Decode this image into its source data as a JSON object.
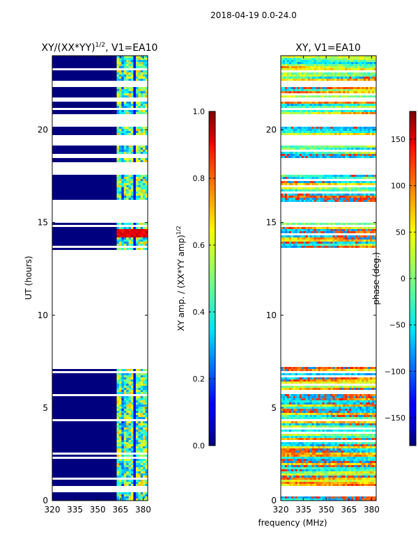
{
  "suptitle": "2018-04-19 0.0-24.0",
  "chart_data": [
    {
      "type": "heatmap",
      "title": "XY/(XX*YY)1/2, V1=EA10",
      "title_main": "XY/(XX*YY)",
      "title_sup": "1/2",
      "title_rest": ", V1=EA10",
      "ylabel": "UT (hours)",
      "xlabel": "frequency (MHz)",
      "xlim": [
        320,
        383
      ],
      "ylim": [
        0,
        24
      ],
      "xticks": [
        "320",
        "335",
        "350",
        "365",
        "380"
      ],
      "yticks": [
        "0",
        "5",
        "10",
        "15",
        "20"
      ],
      "observed_hours": [
        [
          0.0,
          0.5
        ],
        [
          0.8,
          7.2
        ],
        [
          13.5,
          15.0
        ],
        [
          16.1,
          17.6
        ],
        [
          18.2,
          19.2
        ],
        [
          19.7,
          20.2
        ],
        [
          20.9,
          21.5
        ],
        [
          21.7,
          22.3
        ],
        [
          22.7,
          24.0
        ]
      ],
      "colorbar": {
        "label": "XY amp. / (XX*YY amp)1/2",
        "label_main": "XY amp. / (XX*YY amp)",
        "label_sup": "1/2",
        "range": [
          0.0,
          1.0
        ],
        "ticks": [
          "0.0",
          "0.2",
          "0.4",
          "0.6",
          "0.8",
          "1.0"
        ]
      }
    },
    {
      "type": "heatmap",
      "title": "XY, V1=EA10",
      "xlabel": "frequency (MHz)",
      "xlim": [
        320,
        383
      ],
      "ylim": [
        0,
        24
      ],
      "xticks": [
        "320",
        "335",
        "350",
        "365",
        "380"
      ],
      "yticks": [
        "0",
        "5",
        "10",
        "15",
        "20"
      ],
      "observed_hours": [
        [
          0.0,
          0.5
        ],
        [
          0.8,
          7.2
        ],
        [
          13.5,
          15.0
        ],
        [
          16.1,
          17.6
        ],
        [
          18.2,
          19.2
        ],
        [
          19.7,
          20.2
        ],
        [
          20.9,
          21.5
        ],
        [
          21.7,
          22.3
        ],
        [
          22.7,
          24.0
        ]
      ],
      "colorbar": {
        "label": "phase (deg.)",
        "range": [
          -180,
          180
        ],
        "ticks": [
          "−150",
          "−100",
          "−50",
          "0",
          "50",
          "100",
          "150"
        ]
      }
    }
  ],
  "xlabel_shared": "frequency (MHz)"
}
